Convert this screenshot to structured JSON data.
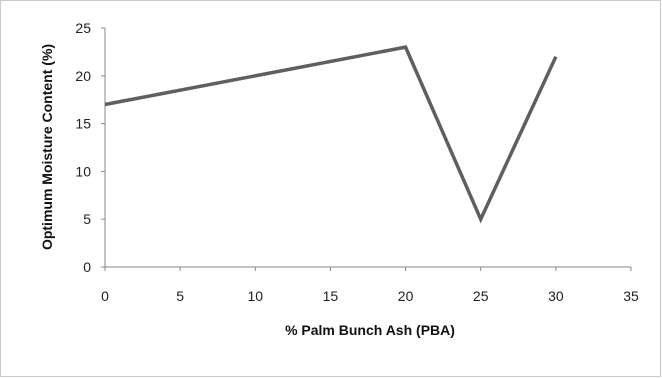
{
  "chart_data": {
    "type": "line",
    "title": "",
    "xlabel": "% Palm Bunch Ash (PBA)",
    "ylabel": "Optimum  Moisture Content (%)",
    "xlim": [
      0,
      35
    ],
    "ylim": [
      0,
      25
    ],
    "xticks": [
      0,
      5,
      10,
      15,
      20,
      25,
      30,
      35
    ],
    "yticks": [
      0,
      5,
      10,
      15,
      20,
      25
    ],
    "grid": false,
    "legend": "none",
    "series": [
      {
        "x": [
          0,
          20,
          25,
          30
        ],
        "y": [
          17,
          23,
          5,
          22
        ],
        "color": "#5f5f5f"
      }
    ]
  }
}
